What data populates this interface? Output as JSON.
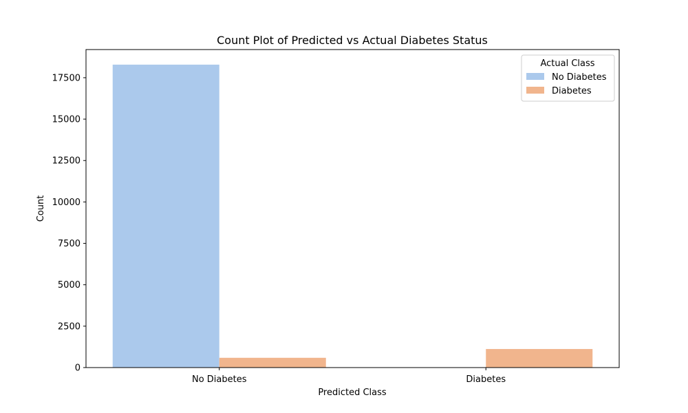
{
  "chart_data": {
    "type": "bar",
    "title": "Count Plot of Predicted vs Actual Diabetes Status",
    "xlabel": "Predicted Class",
    "ylabel": "Count",
    "categories": [
      "No Diabetes",
      "Diabetes"
    ],
    "ylim": [
      0,
      19200
    ],
    "yticks": [
      0,
      2500,
      5000,
      7500,
      10000,
      12500,
      15000,
      17500
    ],
    "grid": false,
    "legend": {
      "title": "Actual Class",
      "placement": "top-right"
    },
    "series": [
      {
        "name": "No Diabetes",
        "color": "#abc9ec",
        "values": [
          18290,
          0
        ]
      },
      {
        "name": "Diabetes",
        "color": "#f1b58d",
        "values": [
          590,
          1120
        ]
      }
    ]
  }
}
